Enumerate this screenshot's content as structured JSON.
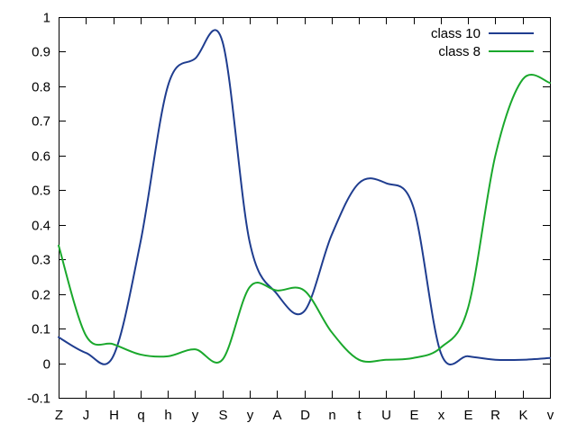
{
  "chart_data": {
    "type": "line",
    "title": "",
    "xlabel": "",
    "ylabel": "",
    "categories": [
      "Z",
      "J",
      "H",
      "q",
      "h",
      "y",
      "S",
      "y",
      "A",
      "D",
      "n",
      "t",
      "U",
      "E",
      "x",
      "E",
      "R",
      "K",
      "v"
    ],
    "ylim": [
      -0.1,
      1
    ],
    "yticks": [
      "-0.1",
      "0",
      "0.1",
      "0.2",
      "0.3",
      "0.4",
      "0.5",
      "0.6",
      "0.7",
      "0.8",
      "0.9",
      "1"
    ],
    "ytick_values": [
      -0.1,
      0,
      0.1,
      0.2,
      0.3,
      0.4,
      0.5,
      0.6,
      0.7,
      0.8,
      0.9,
      1
    ],
    "grid": false,
    "legend_position": "top-right",
    "series": [
      {
        "name": "class 10",
        "color": "#1f3d8f",
        "values": [
          0.075,
          0.03,
          0.02,
          0.35,
          0.8,
          0.88,
          0.93,
          0.35,
          0.2,
          0.15,
          0.37,
          0.52,
          0.52,
          0.45,
          0.03,
          0.02,
          0.01,
          0.01,
          0.015
        ]
      },
      {
        "name": "class 8",
        "color": "#1aa82c",
        "values": [
          0.34,
          0.08,
          0.055,
          0.025,
          0.02,
          0.04,
          0.01,
          0.22,
          0.21,
          0.21,
          0.09,
          0.01,
          0.01,
          0.015,
          0.045,
          0.16,
          0.6,
          0.82,
          0.81
        ]
      }
    ]
  }
}
